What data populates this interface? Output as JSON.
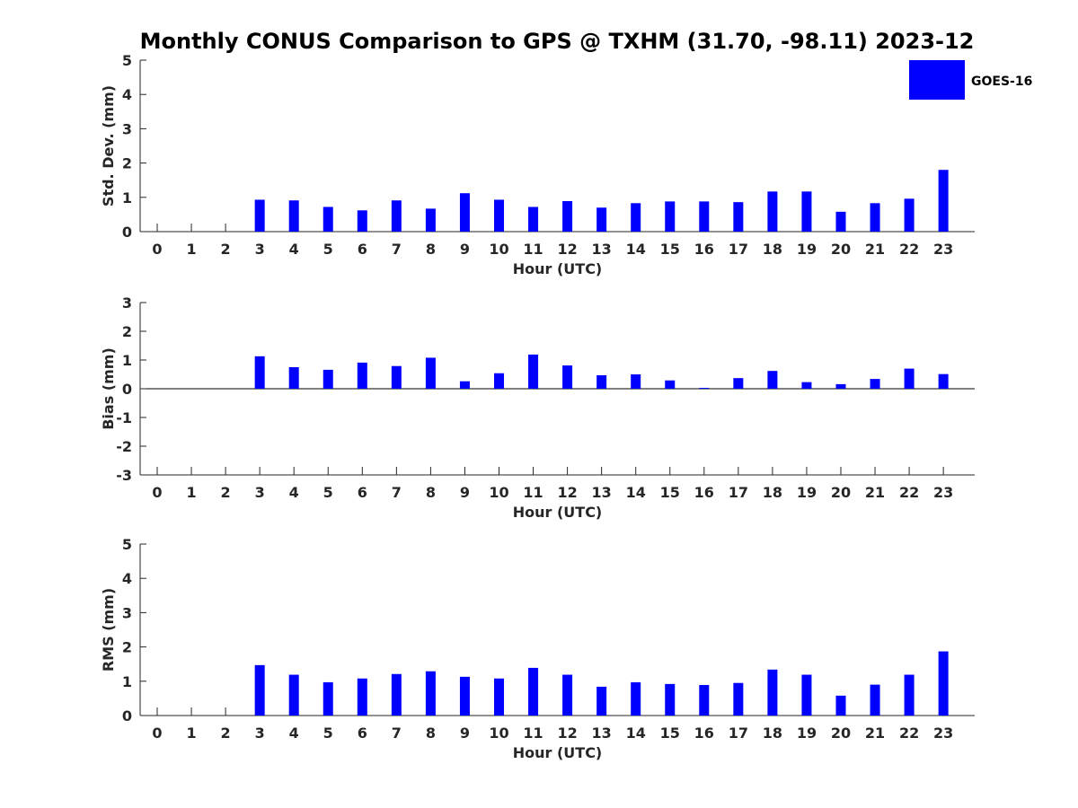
{
  "chart_data": {
    "title": "Monthly CONUS Comparison to GPS @ TXHM (31.70, -98.11) 2023-12",
    "legend": {
      "label": "GOES-16",
      "color": "#0000ff",
      "position": "top-right"
    },
    "type": "bar",
    "categories": [
      0,
      1,
      2,
      3,
      4,
      5,
      6,
      7,
      8,
      9,
      10,
      11,
      12,
      13,
      14,
      15,
      16,
      17,
      18,
      19,
      20,
      21,
      22,
      23
    ],
    "panels": [
      {
        "type": "bar",
        "ylabel": "Std. Dev. (mm)",
        "xlabel": "Hour (UTC)",
        "ylim": [
          0,
          5
        ],
        "yticks": [
          0,
          1,
          2,
          3,
          4,
          5
        ],
        "series": [
          {
            "name": "GOES-16",
            "color": "#0000ff",
            "values": [
              null,
              null,
              null,
              0.93,
              0.91,
              0.72,
              0.62,
              0.91,
              0.67,
              1.12,
              0.93,
              0.72,
              0.89,
              0.7,
              0.83,
              0.88,
              0.88,
              0.86,
              1.17,
              1.17,
              0.58,
              0.83,
              0.96,
              1.8
            ]
          }
        ]
      },
      {
        "type": "bar",
        "ylabel": "Bias (mm)",
        "xlabel": "Hour (UTC)",
        "ylim": [
          -3,
          3
        ],
        "yticks": [
          -3,
          -2,
          -1,
          0,
          1,
          2,
          3
        ],
        "series": [
          {
            "name": "GOES-16",
            "color": "#0000ff",
            "values": [
              null,
              null,
              null,
              1.13,
              0.75,
              0.66,
              0.91,
              0.79,
              1.08,
              0.26,
              0.54,
              1.19,
              0.81,
              0.47,
              0.5,
              0.29,
              0.03,
              0.37,
              0.62,
              0.23,
              0.16,
              0.34,
              0.7,
              0.51
            ]
          }
        ]
      },
      {
        "type": "bar",
        "ylabel": "RMS (mm)",
        "xlabel": "Hour (UTC)",
        "ylim": [
          0,
          5
        ],
        "yticks": [
          0,
          1,
          2,
          3,
          4,
          5
        ],
        "series": [
          {
            "name": "GOES-16",
            "color": "#0000ff",
            "values": [
              null,
              null,
              null,
              1.47,
              1.19,
              0.97,
              1.08,
              1.21,
              1.29,
              1.13,
              1.08,
              1.39,
              1.19,
              0.84,
              0.97,
              0.92,
              0.89,
              0.95,
              1.34,
              1.19,
              0.58,
              0.9,
              1.19,
              1.87
            ]
          }
        ]
      }
    ]
  }
}
